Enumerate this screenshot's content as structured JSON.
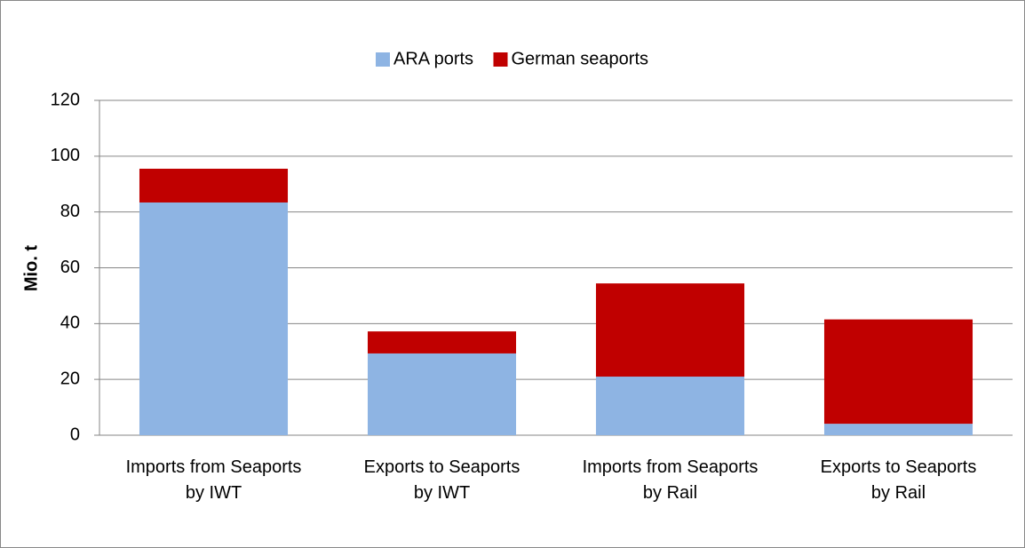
{
  "chart_data": {
    "type": "stacked_bar",
    "y_label": "Mio. t",
    "categories": [
      "Imports from Seaports by IWT",
      "Exports to Seaports by IWT",
      "Imports from Seaports by Rail",
      "Exports to Seaports by Rail"
    ],
    "series": [
      {
        "name": "ARA ports",
        "color": "#8eb4e3",
        "values": [
          83.4,
          29.3,
          21.0,
          4.1
        ]
      },
      {
        "name": "German seaports",
        "color": "#c00000",
        "values": [
          12.1,
          7.9,
          33.4,
          37.4
        ]
      }
    ],
    "ylim": [
      0,
      120
    ],
    "yticks": [
      0,
      20,
      40,
      60,
      80,
      100,
      120
    ],
    "grid": true,
    "legend": "top"
  }
}
